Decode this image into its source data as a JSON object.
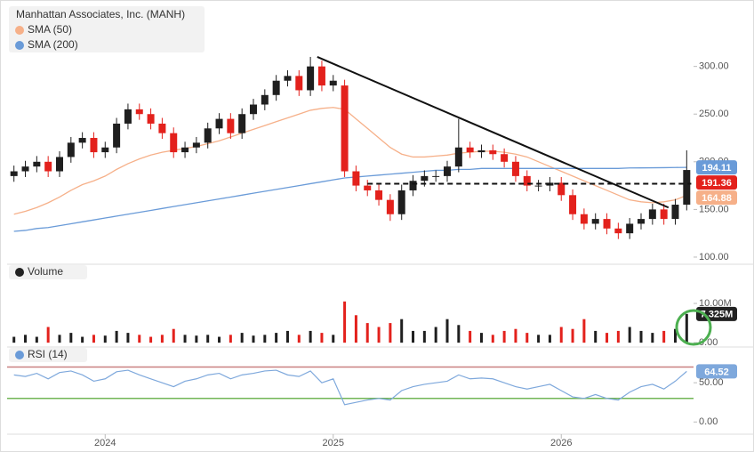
{
  "chart_data": [
    {
      "type": "candlestick",
      "title": "Manhattan Associates, Inc. (MANH)",
      "x": [
        2023.6,
        2023.65,
        2023.7,
        2023.75,
        2023.8,
        2023.85,
        2023.9,
        2023.95,
        2024.0,
        2024.05,
        2024.1,
        2024.15,
        2024.2,
        2024.25,
        2024.3,
        2024.35,
        2024.4,
        2024.45,
        2024.5,
        2024.55,
        2024.6,
        2024.65,
        2024.7,
        2024.75,
        2024.8,
        2024.85,
        2024.9,
        2024.95,
        2025.0,
        2025.05,
        2025.1,
        2025.15,
        2025.2,
        2025.25,
        2025.3,
        2025.35,
        2025.4,
        2025.45,
        2025.5,
        2025.55,
        2025.6,
        2025.65,
        2025.7,
        2025.75,
        2025.8,
        2025.85,
        2025.9,
        2025.95,
        2026.0,
        2026.05,
        2026.1,
        2026.15,
        2026.2,
        2026.25,
        2026.3,
        2026.35,
        2026.4,
        2026.45,
        2026.5,
        2026.55
      ],
      "open": [
        185,
        190,
        195,
        200,
        190,
        205,
        220,
        225,
        210,
        215,
        240,
        255,
        250,
        240,
        230,
        210,
        215,
        220,
        235,
        245,
        230,
        250,
        260,
        270,
        285,
        290,
        275,
        300,
        280,
        280,
        190,
        175,
        170,
        160,
        145,
        170,
        180,
        185,
        185,
        195,
        215,
        210,
        212,
        208,
        200,
        185,
        175,
        175,
        178,
        165,
        145,
        135,
        140,
        130,
        125,
        135,
        140,
        150,
        140,
        155
      ],
      "high": [
        196,
        201,
        206,
        206,
        211,
        226,
        231,
        231,
        221,
        246,
        261,
        261,
        256,
        246,
        236,
        221,
        226,
        241,
        251,
        251,
        256,
        266,
        276,
        291,
        296,
        296,
        310,
        306,
        291,
        286,
        196,
        181,
        176,
        166,
        176,
        186,
        191,
        191,
        201,
        245,
        221,
        218,
        218,
        214,
        206,
        191,
        181,
        184,
        184,
        171,
        151,
        146,
        146,
        136,
        141,
        146,
        156,
        156,
        161,
        212
      ],
      "low": [
        179,
        184,
        189,
        184,
        184,
        199,
        214,
        204,
        204,
        209,
        234,
        244,
        234,
        224,
        204,
        204,
        209,
        214,
        229,
        224,
        224,
        244,
        254,
        264,
        279,
        269,
        269,
        274,
        274,
        184,
        169,
        164,
        154,
        138,
        139,
        164,
        174,
        179,
        179,
        189,
        204,
        204,
        202,
        194,
        179,
        169,
        169,
        169,
        159,
        139,
        129,
        129,
        124,
        119,
        119,
        129,
        134,
        134,
        134,
        149
      ],
      "close": [
        190,
        195,
        200,
        190,
        205,
        220,
        225,
        210,
        215,
        240,
        255,
        250,
        240,
        230,
        210,
        215,
        220,
        235,
        245,
        230,
        250,
        260,
        270,
        285,
        290,
        275,
        300,
        280,
        285,
        190,
        175,
        170,
        160,
        145,
        170,
        180,
        185,
        185,
        195,
        215,
        210,
        212,
        208,
        200,
        185,
        175,
        175,
        178,
        165,
        145,
        135,
        140,
        130,
        125,
        135,
        140,
        150,
        140,
        155,
        191.36
      ],
      "up_color": "#1f1f1f",
      "down_color": "#e3211c",
      "series": [
        {
          "name": "SMA (50)",
          "color": "#f6b089",
          "values": [
            145,
            148,
            152,
            157,
            163,
            170,
            176,
            180,
            185,
            192,
            198,
            203,
            207,
            210,
            212,
            214,
            216,
            219,
            222,
            226,
            230,
            234,
            238,
            242,
            246,
            250,
            254,
            256,
            257,
            255,
            245,
            235,
            225,
            215,
            208,
            205,
            205,
            206,
            207,
            209,
            210,
            211,
            211,
            210,
            208,
            205,
            200,
            195,
            190,
            185,
            180,
            175,
            170,
            165,
            160,
            158,
            157,
            158,
            160,
            164.88
          ]
        },
        {
          "name": "SMA (200)",
          "color": "#6a9bd8",
          "values": [
            127,
            128,
            130,
            131,
            133,
            135,
            137,
            139,
            141,
            143,
            145,
            147,
            149,
            151,
            153,
            155,
            157,
            159,
            161,
            163,
            165,
            167,
            169,
            171,
            173,
            175,
            177,
            179,
            181,
            183,
            184,
            185,
            186,
            187,
            188,
            189,
            190,
            191,
            191,
            192,
            192,
            193,
            193,
            193,
            193,
            193,
            193,
            193,
            193,
            193,
            193,
            193,
            193,
            193,
            193.5,
            193.6,
            193.7,
            193.8,
            194,
            194.11
          ]
        }
      ],
      "ylim": [
        92.5,
        365
      ],
      "yticks": [
        {
          "value": 100,
          "label": "100.00"
        },
        {
          "value": 150,
          "label": "150.00"
        },
        {
          "value": 200,
          "label": "200.00"
        },
        {
          "value": 250,
          "label": "250.00"
        },
        {
          "value": 300,
          "label": "300.00"
        }
      ],
      "xlim": [
        2023.57,
        2026.58
      ],
      "xticks": [
        2024,
        2025,
        2026
      ],
      "trendline": {
        "x": [
          2024.93,
          2026.47
        ],
        "y": [
          310,
          152
        ]
      },
      "support": {
        "x": [
          2025.15,
          2026.57
        ],
        "y": 177
      }
    },
    {
      "type": "bar",
      "title": "Volume",
      "values": [
        1.5,
        2,
        1.5,
        4,
        2,
        2.5,
        1.5,
        2,
        1.8,
        3,
        2.5,
        2,
        1.5,
        2,
        3.5,
        2,
        1.8,
        2,
        1.5,
        2,
        2.5,
        1.8,
        2,
        2.5,
        3,
        2,
        3,
        2.5,
        2,
        10.5,
        7,
        5,
        4,
        5,
        6,
        3,
        3,
        4,
        6,
        4.5,
        3,
        2.5,
        2,
        3,
        3.5,
        2.5,
        2,
        2,
        4,
        3.5,
        6,
        3,
        2.5,
        3,
        4,
        3,
        2.5,
        3,
        3.5,
        7.325
      ],
      "last_label": "7.325M",
      "ylim": [
        -1.1,
        19.3
      ],
      "yticks": [
        {
          "value": 10,
          "label": "10.00M"
        },
        {
          "value": 0,
          "label": "0.00"
        }
      ]
    },
    {
      "type": "line",
      "title": "RSI (14)",
      "color": "#7ea8dc",
      "values": [
        60,
        58,
        62,
        55,
        63,
        65,
        60,
        52,
        55,
        64,
        66,
        60,
        55,
        50,
        45,
        52,
        55,
        60,
        62,
        55,
        60,
        62,
        65,
        66,
        60,
        58,
        65,
        50,
        55,
        22,
        25,
        28,
        30,
        28,
        40,
        45,
        48,
        50,
        52,
        60,
        55,
        56,
        55,
        50,
        45,
        42,
        45,
        48,
        40,
        32,
        30,
        35,
        30,
        28,
        38,
        45,
        48,
        42,
        52,
        64.52
      ],
      "levels": [
        {
          "value": 70,
          "color": "#c98080"
        },
        {
          "value": 30,
          "color": "#72b556"
        }
      ],
      "ylim": [
        -15.6,
        93.3
      ],
      "yticks": [
        {
          "value": 50,
          "label": "50.00"
        },
        {
          "value": 0,
          "label": "0.00"
        }
      ]
    }
  ]
}
